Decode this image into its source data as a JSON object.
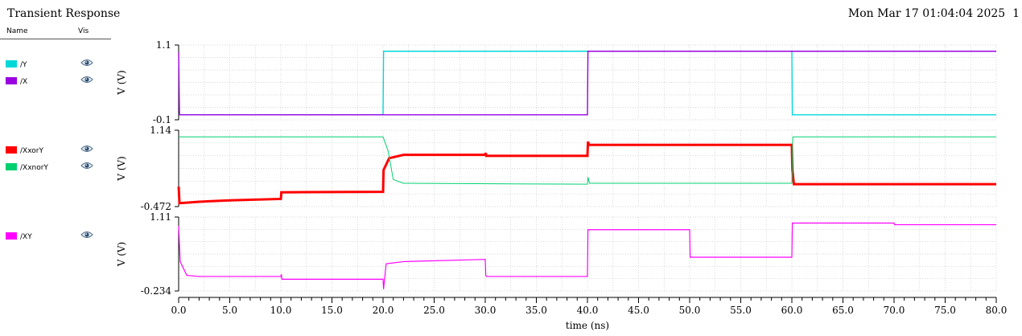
{
  "window": {
    "title": "Transient Response",
    "datetime": "Mon Mar 17 01:04:04 2025  1"
  },
  "legend_header": {
    "name": "Name",
    "vis": "Vis"
  },
  "icons": {
    "visibility": "eye-icon"
  },
  "chart_data": [
    {
      "type": "line",
      "ylabel": "V (V)",
      "ytick_labels": [
        "1.1",
        "-0.1"
      ],
      "ylim": [
        -0.1,
        1.1
      ],
      "grid": true,
      "series": [
        {
          "name": "/Y",
          "color": "#00d8d8",
          "points": [
            [
              0,
              -0.02
            ],
            [
              20,
              -0.02
            ],
            [
              20.05,
              1.0
            ],
            [
              60,
              1.0
            ],
            [
              60.05,
              -0.02
            ],
            [
              80,
              -0.02
            ]
          ]
        },
        {
          "name": "/X",
          "color": "#9b00e0",
          "points": [
            [
              0,
              0.98
            ],
            [
              0.08,
              -0.02
            ],
            [
              40,
              -0.02
            ],
            [
              40.05,
              1.0
            ],
            [
              80,
              1.0
            ]
          ]
        }
      ]
    },
    {
      "type": "line",
      "ylabel": "V (V)",
      "ytick_labels": [
        "1.14",
        "-0.472"
      ],
      "ylim": [
        -0.472,
        1.14
      ],
      "grid": true,
      "series": [
        {
          "name": "/XxorY",
          "color": "#ff0000",
          "points": [
            [
              0,
              -0.05
            ],
            [
              0.08,
              -0.4
            ],
            [
              2,
              -0.37
            ],
            [
              5,
              -0.34
            ],
            [
              10,
              -0.31
            ],
            [
              10.05,
              -0.17
            ],
            [
              20,
              -0.16
            ],
            [
              20.05,
              0.3
            ],
            [
              20.6,
              0.55
            ],
            [
              22,
              0.62
            ],
            [
              30,
              0.62
            ],
            [
              30.05,
              0.66
            ],
            [
              30.1,
              0.6
            ],
            [
              40,
              0.6
            ],
            [
              40.05,
              0.9
            ],
            [
              40.15,
              0.83
            ],
            [
              60,
              0.83
            ],
            [
              60.05,
              0.3
            ],
            [
              60.2,
              0.0
            ],
            [
              80,
              0.0
            ]
          ]
        },
        {
          "name": "/XxnorY",
          "color": "#00d070",
          "points": [
            [
              0,
              1.0
            ],
            [
              20,
              1.0
            ],
            [
              20.5,
              0.7
            ],
            [
              21,
              0.1
            ],
            [
              22,
              0.02
            ],
            [
              40,
              0.0
            ],
            [
              40.05,
              0.15
            ],
            [
              40.2,
              0.02
            ],
            [
              60,
              0.02
            ],
            [
              60.1,
              1.0
            ],
            [
              80,
              1.0
            ]
          ]
        }
      ]
    },
    {
      "type": "line",
      "ylabel": "V (V)",
      "ytick_labels": [
        "1.11",
        "-0.234"
      ],
      "ylim": [
        -0.234,
        1.11
      ],
      "grid": true,
      "series": [
        {
          "name": "/XY",
          "color": "#ff00ff",
          "points": [
            [
              0,
              0.95
            ],
            [
              0.15,
              0.3
            ],
            [
              0.8,
              0.05
            ],
            [
              2,
              0.03
            ],
            [
              10,
              0.03
            ],
            [
              10.05,
              0.07
            ],
            [
              10.1,
              -0.02
            ],
            [
              20,
              -0.02
            ],
            [
              20.05,
              -0.2
            ],
            [
              20.3,
              0.26
            ],
            [
              22,
              0.3
            ],
            [
              30,
              0.34
            ],
            [
              30.05,
              0.05
            ],
            [
              30.1,
              0.03
            ],
            [
              40,
              0.03
            ],
            [
              40.05,
              0.88
            ],
            [
              50,
              0.88
            ],
            [
              50.05,
              0.38
            ],
            [
              60,
              0.38
            ],
            [
              60.05,
              1.0
            ],
            [
              70,
              1.0
            ],
            [
              70.05,
              0.97
            ],
            [
              80,
              0.97
            ]
          ]
        }
      ]
    }
  ],
  "x_axis": {
    "label": "time (ns)",
    "xlim": [
      0,
      80
    ],
    "ticks": [
      {
        "v": 0,
        "t": "0.0"
      },
      {
        "v": 5,
        "t": "5.0"
      },
      {
        "v": 10,
        "t": "10.0"
      },
      {
        "v": 15,
        "t": "15.0"
      },
      {
        "v": 20,
        "t": "20.0"
      },
      {
        "v": 25,
        "t": "25.0"
      },
      {
        "v": 30,
        "t": "30.0"
      },
      {
        "v": 35,
        "t": "35.0"
      },
      {
        "v": 40,
        "t": "40.0"
      },
      {
        "v": 45,
        "t": "45.0"
      },
      {
        "v": 50,
        "t": "50.0"
      },
      {
        "v": 55,
        "t": "55.0"
      },
      {
        "v": 60,
        "t": "60.0"
      },
      {
        "v": 65,
        "t": "65.0"
      },
      {
        "v": 70,
        "t": "70.0"
      },
      {
        "v": 75,
        "t": "75.0"
      },
      {
        "v": 80,
        "t": "80.0"
      }
    ]
  }
}
